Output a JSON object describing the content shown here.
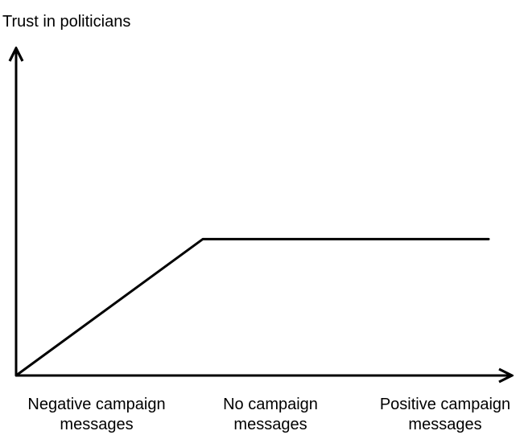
{
  "chart_data": {
    "type": "line",
    "title": "",
    "ylabel": "Trust in politicians",
    "xlabel": "",
    "categories": [
      [
        "Negative campaign",
        "messages"
      ],
      [
        "No campaign",
        "messages"
      ],
      [
        "Positive campaign",
        "messages"
      ]
    ],
    "x": [
      0,
      1,
      2
    ],
    "series": [
      {
        "values": [
          0,
          1,
          1
        ]
      }
    ],
    "ylim": [
      0,
      2.4
    ],
    "grid": false,
    "line_color": "#000000"
  }
}
